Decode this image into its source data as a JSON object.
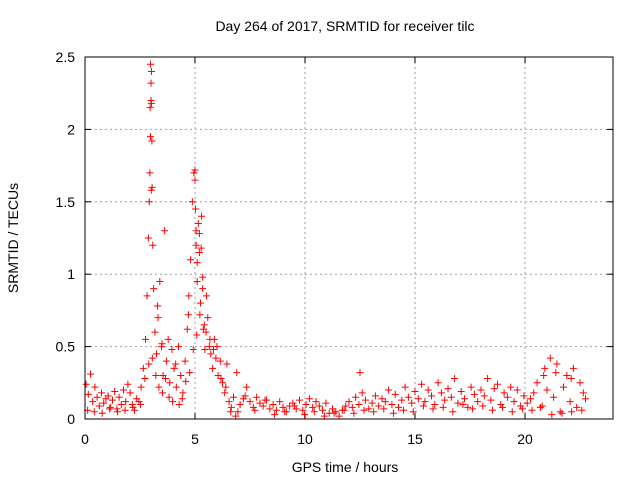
{
  "chart_data": {
    "type": "scatter",
    "title": "Day 264 of 2017, SRMTID for receiver tilc",
    "xlabel": "GPS time / hours",
    "ylabel": "SRMTID / TECUs",
    "xlim": [
      0,
      24
    ],
    "ylim": [
      0,
      2.5
    ],
    "x_ticks": [
      0,
      5,
      10,
      15,
      20
    ],
    "x_tick_labels": [
      "0",
      "5",
      "10",
      "15",
      "20"
    ],
    "y_ticks": [
      0,
      0.5,
      1,
      1.5,
      2,
      2.5
    ],
    "y_tick_labels": [
      "0",
      "0.5",
      "1",
      "1.5",
      "2",
      "2.5"
    ],
    "grid": true,
    "marker": "+",
    "color": "#ff0000",
    "series": [
      {
        "name": "SRMTID",
        "x": [
          0.05,
          0.15,
          0.25,
          0.35,
          0.45,
          0.55,
          0.65,
          0.75,
          0.85,
          0.95,
          1.05,
          1.15,
          1.25,
          1.35,
          1.45,
          1.55,
          1.65,
          1.75,
          1.85,
          1.95,
          2.05,
          2.15,
          2.25,
          2.35,
          2.45,
          2.55,
          2.65,
          2.75,
          2.82,
          2.88,
          2.92,
          2.95,
          2.98,
          3.0,
          3.02,
          3.05,
          3.08,
          3.12,
          3.18,
          3.25,
          3.32,
          3.4,
          3.48,
          3.55,
          3.62,
          3.7,
          3.78,
          3.85,
          3.95,
          4.05,
          4.15,
          4.25,
          4.35,
          4.45,
          4.55,
          4.65,
          4.72,
          4.8,
          4.88,
          4.95,
          5.0,
          5.05,
          5.1,
          5.15,
          5.2,
          5.25,
          5.3,
          5.35,
          5.42,
          5.5,
          5.58,
          5.65,
          5.72,
          5.8,
          5.88,
          5.95,
          6.05,
          6.15,
          6.25,
          6.35,
          6.45,
          6.55,
          6.65,
          6.75,
          6.85,
          6.95,
          7.05,
          7.2,
          7.35,
          7.5,
          7.65,
          7.8,
          7.95,
          8.1,
          8.25,
          8.4,
          8.55,
          8.7,
          8.85,
          9.0,
          9.15,
          9.3,
          9.45,
          9.6,
          9.75,
          9.9,
          10.05,
          10.2,
          10.35,
          10.5,
          10.65,
          10.8,
          10.95,
          11.1,
          11.25,
          11.4,
          11.55,
          11.7,
          11.85,
          12.0,
          12.15,
          12.3,
          12.45,
          12.6,
          12.75,
          12.9,
          13.05,
          13.2,
          13.35,
          13.5,
          13.65,
          13.8,
          13.95,
          14.1,
          14.25,
          14.4,
          14.55,
          14.7,
          14.85,
          15.0,
          15.15,
          15.3,
          15.45,
          15.6,
          15.75,
          15.9,
          16.05,
          16.2,
          16.35,
          16.5,
          16.65,
          16.8,
          16.95,
          17.1,
          17.25,
          17.4,
          17.55,
          17.7,
          17.85,
          18.0,
          18.15,
          18.3,
          18.45,
          18.6,
          18.75,
          18.9,
          19.05,
          19.2,
          19.35,
          19.5,
          19.65,
          19.8,
          19.95,
          20.1,
          20.25,
          20.4,
          20.55,
          20.7,
          20.85,
          21.0,
          21.15,
          21.3,
          21.45,
          21.6,
          21.75,
          21.9,
          22.05,
          22.2,
          22.35,
          22.5,
          22.65,
          22.75,
          0.12,
          0.42,
          0.78,
          1.12,
          1.48,
          1.82,
          2.18,
          2.52,
          2.72,
          2.9,
          3.06,
          3.22,
          3.36,
          3.52,
          3.66,
          3.82,
          3.98,
          4.12,
          4.28,
          4.42,
          4.58,
          4.76,
          4.92,
          5.08,
          5.22,
          5.38,
          5.52,
          5.68,
          5.84,
          6.0,
          6.18,
          6.4,
          6.62,
          6.9,
          7.28,
          7.72,
          8.18,
          8.62,
          9.08,
          9.52,
          9.98,
          10.42,
          10.88,
          11.32,
          11.78,
          12.22,
          12.68,
          13.12,
          13.58,
          14.02,
          14.48,
          14.92,
          15.38,
          15.82,
          16.28,
          16.72,
          17.18,
          17.62,
          18.08,
          18.52,
          18.98,
          19.42,
          19.88,
          20.32,
          20.78,
          21.22,
          21.68,
          22.12,
          22.58,
          2.98,
          3.0,
          3.02,
          3.04,
          2.96,
          3.01,
          5.0,
          5.05,
          5.1,
          5.02,
          5.2,
          5.28,
          3.3,
          3.5,
          4.7,
          5.35,
          5.45,
          20.9,
          21.4,
          22.1,
          12.5
        ],
        "y": [
          0.24,
          0.17,
          0.31,
          0.12,
          0.22,
          0.15,
          0.09,
          0.18,
          0.11,
          0.14,
          0.16,
          0.08,
          0.13,
          0.19,
          0.07,
          0.15,
          0.1,
          0.2,
          0.12,
          0.24,
          0.18,
          0.1,
          0.06,
          0.14,
          0.12,
          0.22,
          0.35,
          0.55,
          0.85,
          1.25,
          1.5,
          1.7,
          1.95,
          2.2,
          2.4,
          1.6,
          1.2,
          0.9,
          0.6,
          0.45,
          0.7,
          0.95,
          0.5,
          0.3,
          1.3,
          0.4,
          0.55,
          0.25,
          0.48,
          0.35,
          0.22,
          0.5,
          0.3,
          0.18,
          0.4,
          0.62,
          0.85,
          1.1,
          1.5,
          1.7,
          1.65,
          1.2,
          0.95,
          1.35,
          1.15,
          0.8,
          1.4,
          0.9,
          0.65,
          0.6,
          0.7,
          0.5,
          0.45,
          0.35,
          0.55,
          0.42,
          0.3,
          0.4,
          0.25,
          0.18,
          0.38,
          0.12,
          0.08,
          0.15,
          0.02,
          0.05,
          0.1,
          0.14,
          0.22,
          0.12,
          0.08,
          0.15,
          0.11,
          0.09,
          0.13,
          0.07,
          0.1,
          0.06,
          0.12,
          0.08,
          0.05,
          0.09,
          0.11,
          0.07,
          0.13,
          0.06,
          0.1,
          0.14,
          0.08,
          0.12,
          0.09,
          0.06,
          0.11,
          0.04,
          0.07,
          0.05,
          0.02,
          0.06,
          0.09,
          0.12,
          0.08,
          0.15,
          0.1,
          0.18,
          0.13,
          0.07,
          0.11,
          0.16,
          0.09,
          0.14,
          0.12,
          0.2,
          0.1,
          0.17,
          0.08,
          0.13,
          0.22,
          0.15,
          0.11,
          0.19,
          0.14,
          0.24,
          0.12,
          0.2,
          0.16,
          0.1,
          0.25,
          0.18,
          0.13,
          0.21,
          0.15,
          0.28,
          0.11,
          0.19,
          0.14,
          0.08,
          0.22,
          0.17,
          0.12,
          0.2,
          0.16,
          0.28,
          0.13,
          0.21,
          0.24,
          0.1,
          0.18,
          0.15,
          0.22,
          0.12,
          0.2,
          0.09,
          0.16,
          0.11,
          0.14,
          0.18,
          0.25,
          0.08,
          0.3,
          0.2,
          0.42,
          0.15,
          0.38,
          0.05,
          0.22,
          0.3,
          0.12,
          0.35,
          0.08,
          0.25,
          0.18,
          0.14,
          0.06,
          0.05,
          0.04,
          0.07,
          0.05,
          0.06,
          0.08,
          0.1,
          0.28,
          0.38,
          0.42,
          0.3,
          0.22,
          0.18,
          0.28,
          0.15,
          0.12,
          0.38,
          0.1,
          0.14,
          0.26,
          0.32,
          0.48,
          0.58,
          0.72,
          0.62,
          0.85,
          0.55,
          0.48,
          0.5,
          0.28,
          0.22,
          0.05,
          0.32,
          0.16,
          0.06,
          0.13,
          0.03,
          0.05,
          0.09,
          0.03,
          0.05,
          0.02,
          0.04,
          0.06,
          0.04,
          0.06,
          0.05,
          0.07,
          0.04,
          0.06,
          0.05,
          0.09,
          0.07,
          0.08,
          0.05,
          0.1,
          0.07,
          0.09,
          0.06,
          0.08,
          0.05,
          0.07,
          0.06,
          0.09,
          0.03,
          0.04,
          0.05,
          0.06,
          2.45,
          2.32,
          2.18,
          1.92,
          2.15,
          1.58,
          1.72,
          1.3,
          1.08,
          1.45,
          1.28,
          1.18,
          0.78,
          0.52,
          0.72,
          0.98,
          0.48,
          0.35,
          0.32,
          0.28,
          0.32
        ]
      }
    ]
  }
}
